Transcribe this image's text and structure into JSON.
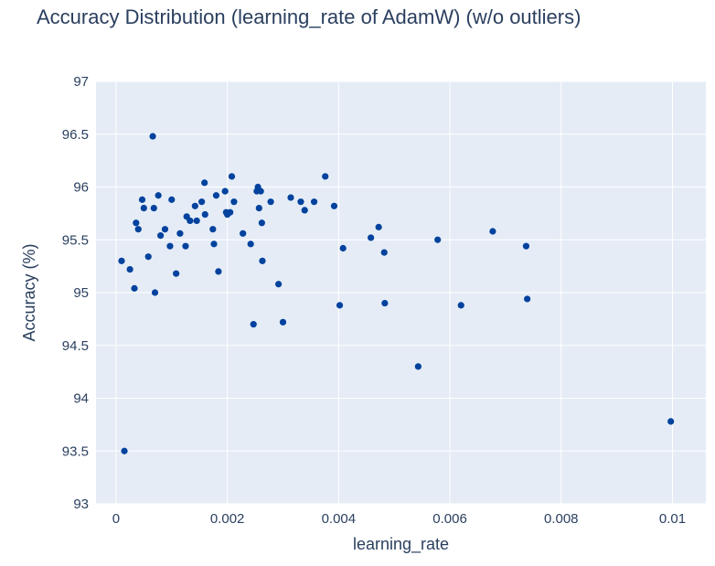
{
  "chart_data": {
    "type": "scatter",
    "title": "Accuracy Distribution (learning_rate of AdamW) (w/o outliers)",
    "xlabel": "learning_rate",
    "ylabel": "Accuracy (%)",
    "xlim": [
      -0.00036,
      0.0106
    ],
    "ylim": [
      93,
      97
    ],
    "x_ticks": [
      0,
      0.002,
      0.004,
      0.006,
      0.008,
      0.01
    ],
    "x_tick_labels": [
      "0",
      "0.002",
      "0.004",
      "0.006",
      "0.008",
      "0.01"
    ],
    "y_ticks": [
      93,
      93.5,
      94,
      94.5,
      95,
      95.5,
      96,
      96.5,
      97
    ],
    "y_tick_labels": [
      "93",
      "93.5",
      "94",
      "94.5",
      "95",
      "95.5",
      "96",
      "96.5",
      "97"
    ],
    "grid": true,
    "colors": {
      "marker": "#00429d",
      "plot_bg": "#e5ecf6",
      "grid": "#ffffff"
    },
    "points": [
      [
        0.0001,
        95.3
      ],
      [
        0.00015,
        93.5
      ],
      [
        0.00025,
        95.22
      ],
      [
        0.00033,
        95.04
      ],
      [
        0.00036,
        95.66
      ],
      [
        0.0004,
        95.6
      ],
      [
        0.00047,
        95.88
      ],
      [
        0.0005,
        95.8
      ],
      [
        0.00058,
        95.34
      ],
      [
        0.00066,
        96.48
      ],
      [
        0.00068,
        95.8
      ],
      [
        0.0007,
        95.0
      ],
      [
        0.00076,
        95.92
      ],
      [
        0.0008,
        95.54
      ],
      [
        0.00088,
        95.6
      ],
      [
        0.00097,
        95.44
      ],
      [
        0.001,
        95.88
      ],
      [
        0.00108,
        95.18
      ],
      [
        0.00115,
        95.56
      ],
      [
        0.00125,
        95.44
      ],
      [
        0.00127,
        95.72
      ],
      [
        0.00133,
        95.68
      ],
      [
        0.00142,
        95.82
      ],
      [
        0.00145,
        95.68
      ],
      [
        0.00154,
        95.86
      ],
      [
        0.00159,
        96.04
      ],
      [
        0.0016,
        95.74
      ],
      [
        0.00174,
        95.6
      ],
      [
        0.00176,
        95.46
      ],
      [
        0.0018,
        95.92
      ],
      [
        0.00184,
        95.2
      ],
      [
        0.00196,
        95.96
      ],
      [
        0.00198,
        95.76
      ],
      [
        0.002,
        95.74
      ],
      [
        0.00205,
        95.76
      ],
      [
        0.00208,
        96.1
      ],
      [
        0.00212,
        95.86
      ],
      [
        0.00228,
        95.56
      ],
      [
        0.00242,
        95.46
      ],
      [
        0.00247,
        94.7
      ],
      [
        0.00253,
        95.96
      ],
      [
        0.00255,
        96.0
      ],
      [
        0.00257,
        95.8
      ],
      [
        0.0026,
        95.96
      ],
      [
        0.00262,
        95.66
      ],
      [
        0.00263,
        95.3
      ],
      [
        0.00278,
        95.86
      ],
      [
        0.00292,
        95.08
      ],
      [
        0.003,
        94.72
      ],
      [
        0.00314,
        95.9
      ],
      [
        0.00332,
        95.86
      ],
      [
        0.00339,
        95.78
      ],
      [
        0.00356,
        95.86
      ],
      [
        0.00376,
        96.1
      ],
      [
        0.00392,
        95.82
      ],
      [
        0.00402,
        94.88
      ],
      [
        0.00408,
        95.42
      ],
      [
        0.00458,
        95.52
      ],
      [
        0.00472,
        95.62
      ],
      [
        0.00482,
        95.38
      ],
      [
        0.00483,
        94.9
      ],
      [
        0.00543,
        94.3
      ],
      [
        0.00578,
        95.5
      ],
      [
        0.0062,
        94.88
      ],
      [
        0.00677,
        95.58
      ],
      [
        0.00737,
        95.44
      ],
      [
        0.00739,
        94.94
      ],
      [
        0.00997,
        93.78
      ]
    ]
  }
}
